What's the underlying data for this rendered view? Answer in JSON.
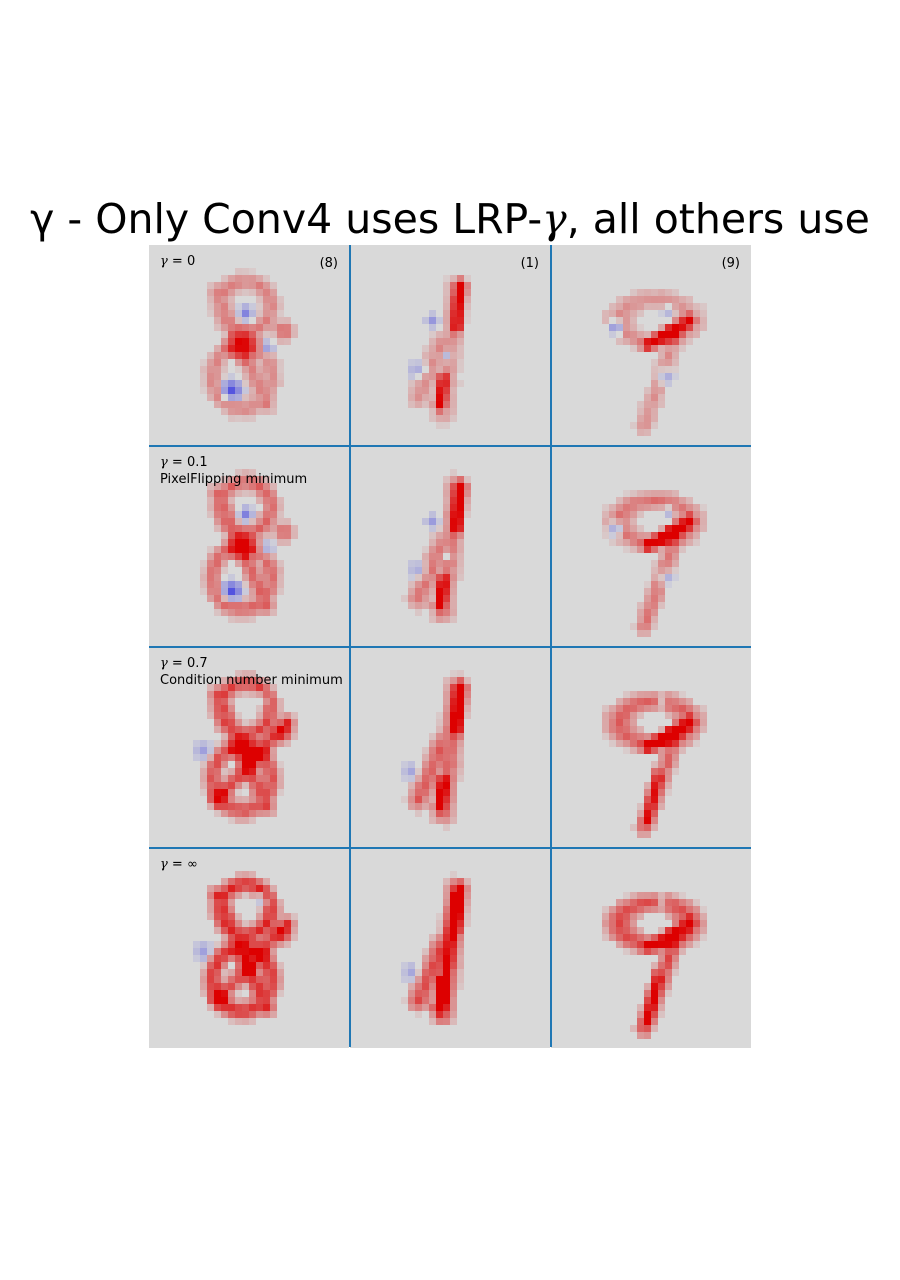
{
  "figure": {
    "title_prefix": "γ   -   Only Conv4 uses LRP-",
    "title_symbol": "γ",
    "title_suffix": ", all others use"
  },
  "columns": [
    {
      "class_label": "(8)"
    },
    {
      "class_label": "(1)"
    },
    {
      "class_label": "(9)"
    }
  ],
  "rows": [
    {
      "gamma_symbol": "γ",
      "gamma_text": " = 0",
      "note": ""
    },
    {
      "gamma_symbol": "γ",
      "gamma_text": " = 0.1",
      "note": "PixelFlipping minimum"
    },
    {
      "gamma_symbol": "γ",
      "gamma_text": " = 0.7",
      "note": "Condition number minimum"
    },
    {
      "gamma_symbol": "γ",
      "gamma_text": " = ∞",
      "note": ""
    }
  ],
  "heatmaps": {
    "colors": {
      "background": "#d9d9d9",
      "positive": "#dd0000",
      "negative": "#3a3ae0",
      "divider": "#1f77b4"
    },
    "cells": [
      [
        {
          "digit": "8",
          "variant": 0
        },
        {
          "digit": "1",
          "variant": 0
        },
        {
          "digit": "9",
          "variant": 0
        }
      ],
      [
        {
          "digit": "8",
          "variant": 1
        },
        {
          "digit": "1",
          "variant": 1
        },
        {
          "digit": "9",
          "variant": 1
        }
      ],
      [
        {
          "digit": "8",
          "variant": 2
        },
        {
          "digit": "1",
          "variant": 2
        },
        {
          "digit": "9",
          "variant": 2
        }
      ],
      [
        {
          "digit": "8",
          "variant": 3
        },
        {
          "digit": "1",
          "variant": 3
        },
        {
          "digit": "9",
          "variant": 3
        }
      ]
    ]
  }
}
